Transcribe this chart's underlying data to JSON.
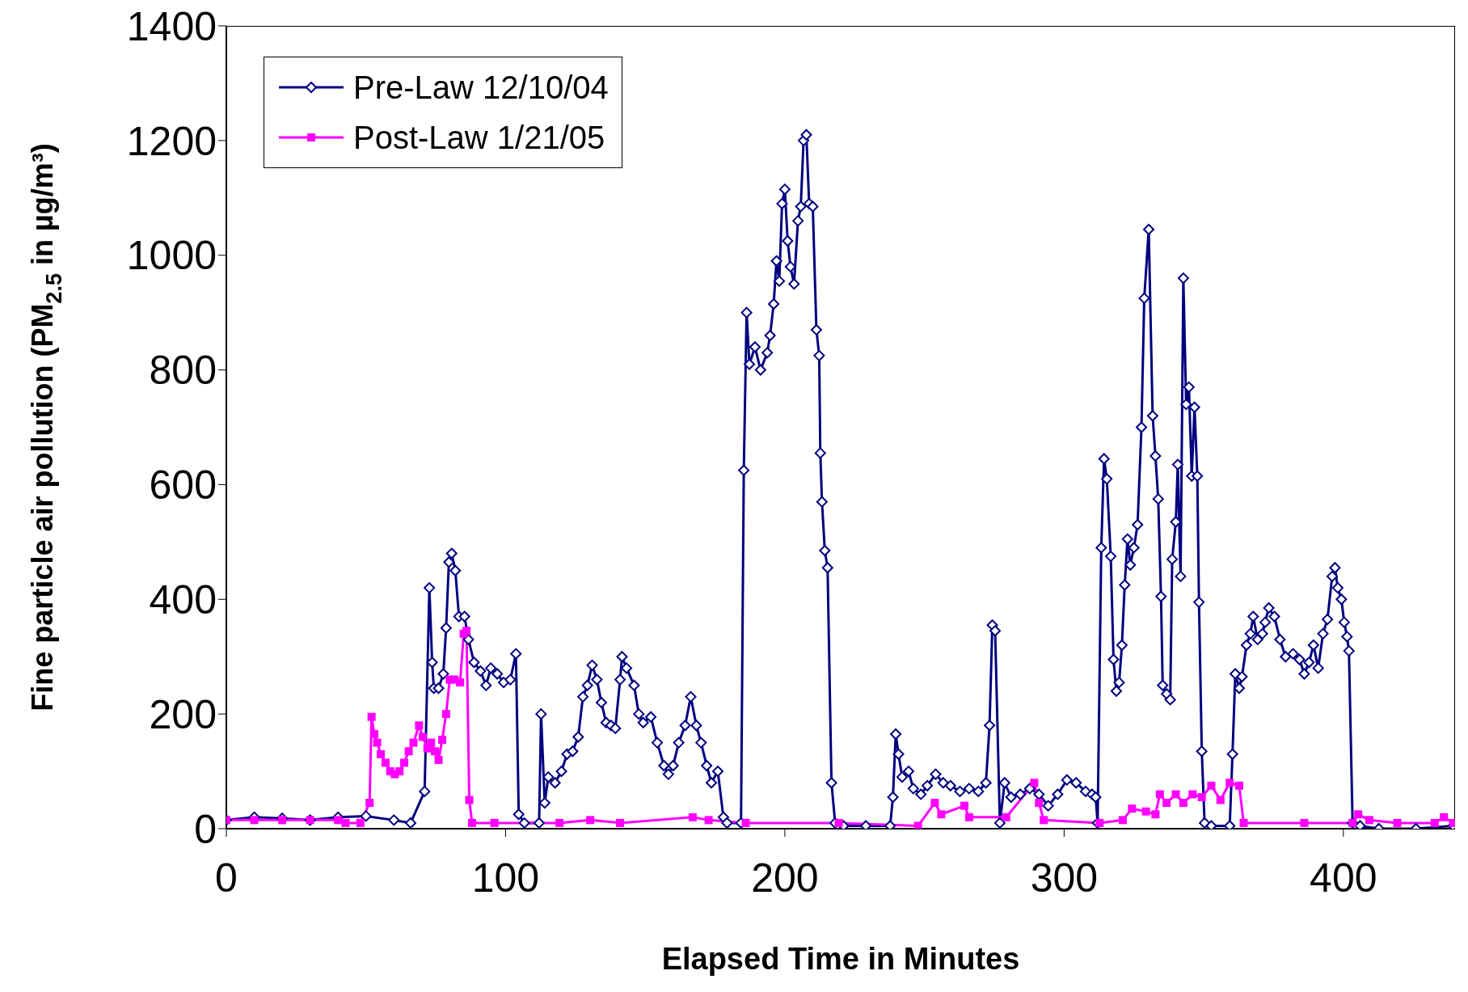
{
  "chart_data": {
    "type": "line",
    "xlabel": "Elapsed Time in Minutes",
    "ylabel": "Fine particle air pollution (PM$_{2.5}$ in µg/m³)",
    "xlim": [
      0,
      440
    ],
    "xticks": [
      0,
      100,
      200,
      300,
      400
    ],
    "ylim": [
      0,
      1400
    ],
    "yticks": [
      0,
      200,
      400,
      600,
      800,
      1000,
      1200,
      1400
    ],
    "grid": false,
    "legend": "top left",
    "line_style": "solid",
    "series": [
      {
        "name": "Pre-Law 12/10/04",
        "color": "#000080",
        "marker": "diamond",
        "x": [
          0,
          10,
          20,
          30,
          40,
          50,
          60,
          66,
          71,
          72.7,
          73.7,
          74.3,
          76,
          77.7,
          78.7,
          79.7,
          80.7,
          82,
          83.3,
          85.3,
          86.7,
          88.7,
          91,
          93,
          94.7,
          97,
          99.3,
          101.7,
          103.7,
          104.7,
          106.7,
          112,
          112.7,
          114,
          115.3,
          117.7,
          120,
          122,
          124,
          126,
          127.7,
          129.3,
          131,
          132.7,
          134.3,
          136,
          137.7,
          139.3,
          141,
          141.7,
          143.3,
          146,
          147.7,
          149.3,
          152,
          154.3,
          156.7,
          158.3,
          160,
          162,
          164.3,
          166.3,
          168.3,
          170,
          172,
          173.7,
          176,
          178,
          179.3,
          184.3,
          185.3,
          186.3,
          187.3,
          189.3,
          191.3,
          193.7,
          194.7,
          196,
          197,
          198,
          199,
          200,
          201,
          202,
          203.3,
          204.7,
          205.7,
          206.7,
          207.7,
          208.7,
          210,
          211.3,
          212.3,
          212.7,
          213.3,
          214.3,
          215.3,
          216.7,
          218,
          221,
          229,
          237.7,
          238.7,
          239.7,
          240.7,
          242,
          244.3,
          246,
          248.7,
          251,
          254,
          256.7,
          259.3,
          262.7,
          266,
          269.3,
          272,
          273.3,
          274.3,
          275.3,
          277,
          278.7,
          281,
          284.3,
          287.7,
          291,
          294.3,
          297.7,
          301,
          304.3,
          307.7,
          310,
          311.3,
          312,
          313.3,
          314.3,
          315.3,
          316.7,
          317.7,
          318.7,
          319.7,
          320.7,
          321.7,
          322.7,
          323.7,
          325,
          326.3,
          327.7,
          328.7,
          330.3,
          331.7,
          332.7,
          333.7,
          334.7,
          335.3,
          336.7,
          338,
          338.7,
          340,
          340.7,
          341.7,
          342.7,
          343.7,
          344.7,
          345.7,
          346.7,
          347.7,
          348.3,
          349.3,
          350.3,
          352.7,
          359.3,
          360.3,
          361.3,
          362.7,
          363.7,
          365.3,
          366.7,
          367.7,
          369.3,
          371,
          372,
          373.3,
          375.3,
          377.3,
          379.3,
          382,
          384.3,
          386,
          387.7,
          389.3,
          391,
          392.7,
          394.3,
          396,
          397,
          398,
          399.3,
          400.3,
          401.3,
          402,
          403.3,
          406,
          412.7,
          426,
          439.3
        ],
        "values": [
          15,
          20,
          18,
          15,
          20,
          22,
          15,
          10,
          65,
          420,
          290,
          245,
          245,
          270,
          350,
          465,
          480,
          450,
          370,
          370,
          330,
          290,
          275,
          250,
          280,
          270,
          255,
          260,
          305,
          25,
          10,
          10,
          200,
          45,
          90,
          80,
          100,
          130,
          135,
          160,
          230,
          250,
          285,
          260,
          220,
          185,
          180,
          175,
          260,
          300,
          280,
          250,
          200,
          185,
          195,
          150,
          110,
          95,
          110,
          150,
          180,
          230,
          180,
          150,
          110,
          80,
          100,
          20,
          10,
          10,
          625,
          900,
          810,
          840,
          800,
          830,
          860,
          915,
          990,
          955,
          1090,
          1115,
          1025,
          980,
          950,
          1060,
          1085,
          1200,
          1210,
          1090,
          1085,
          870,
          825,
          655,
          570,
          485,
          455,
          80,
          10,
          5,
          5,
          5,
          55,
          165,
          130,
          90,
          100,
          70,
          60,
          75,
          95,
          80,
          75,
          65,
          70,
          65,
          80,
          180,
          355,
          345,
          10,
          80,
          55,
          60,
          70,
          60,
          40,
          60,
          85,
          80,
          65,
          60,
          55,
          10,
          490,
          645,
          610,
          475,
          295,
          240,
          255,
          320,
          425,
          505,
          460,
          490,
          530,
          700,
          925,
          1045,
          720,
          650,
          575,
          405,
          250,
          235,
          225,
          470,
          535,
          635,
          440,
          960,
          740,
          770,
          615,
          735,
          615,
          395,
          135,
          10,
          5,
          5,
          130,
          270,
          245,
          265,
          320,
          340,
          370,
          330,
          340,
          360,
          385,
          370,
          330,
          300,
          305,
          295,
          270,
          290,
          320,
          280,
          340,
          365,
          440,
          455,
          420,
          400,
          360,
          335,
          310,
          10,
          5,
          0,
          0,
          5
        ]
      },
      {
        "name": "Post-Law 1/21/05",
        "color": "#ff00ff",
        "marker": "square",
        "x": [
          0,
          10,
          20,
          30,
          40,
          42.7,
          48,
          51.3,
          52,
          53,
          54,
          55.3,
          57,
          58.7,
          60.3,
          62,
          63.7,
          65.3,
          67,
          69,
          70.3,
          72,
          73.3,
          74.7,
          76,
          77.3,
          78.7,
          80,
          81.7,
          83.7,
          85,
          86,
          87,
          88,
          96,
          119.3,
          130.3,
          141,
          167,
          172.7,
          186,
          219.3,
          247.7,
          253.7,
          256,
          264.3,
          266,
          279.3,
          289.3,
          291,
          292.7,
          312.7,
          321,
          324.3,
          329.3,
          332.7,
          334.3,
          336.7,
          340,
          342.7,
          346,
          349.3,
          352.7,
          356,
          359.3,
          362.7,
          364.3,
          386,
          403.3,
          405.3,
          409.3,
          419.3,
          432.7,
          436,
          439.3
        ],
        "values": [
          15,
          15,
          15,
          15,
          15,
          10,
          10,
          45,
          195,
          165,
          150,
          130,
          115,
          100,
          95,
          100,
          115,
          135,
          150,
          180,
          160,
          140,
          150,
          135,
          120,
          155,
          200,
          260,
          260,
          255,
          340,
          345,
          50,
          10,
          10,
          10,
          15,
          10,
          20,
          15,
          10,
          10,
          5,
          45,
          25,
          40,
          20,
          20,
          80,
          45,
          15,
          10,
          15,
          35,
          30,
          25,
          60,
          45,
          60,
          45,
          60,
          55,
          75,
          50,
          80,
          75,
          10,
          10,
          10,
          25,
          15,
          10,
          10,
          20,
          10
        ]
      }
    ]
  }
}
